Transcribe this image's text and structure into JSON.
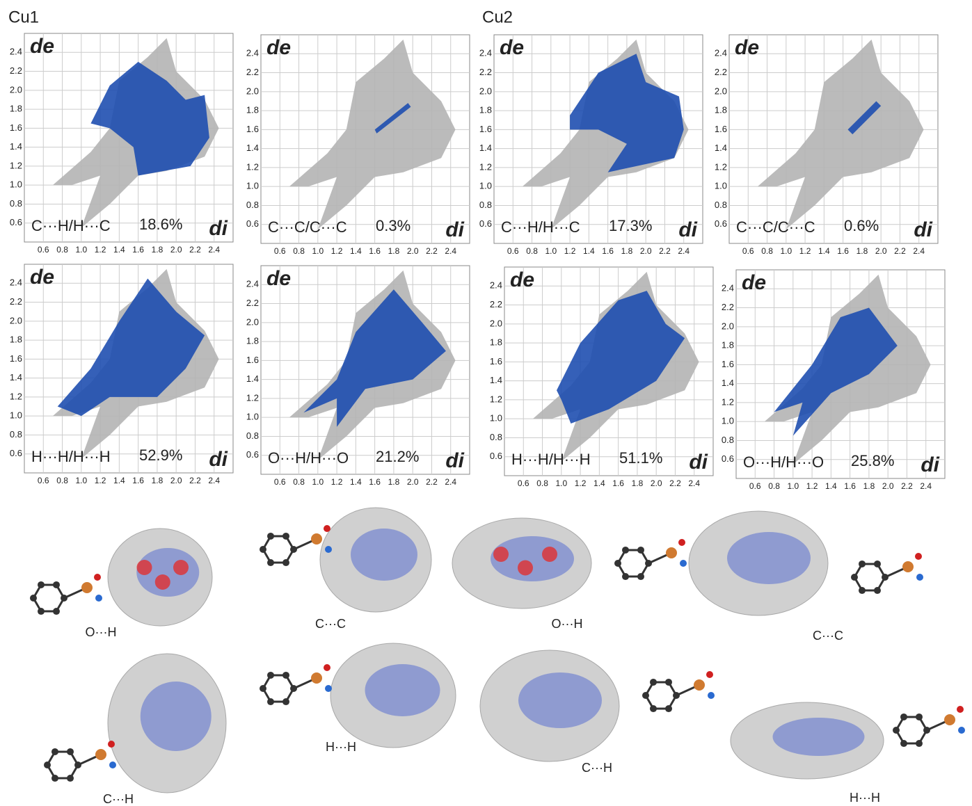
{
  "labels": [
    "Cu1",
    "Cu2"
  ],
  "axes": {
    "de": "de",
    "di": "di",
    "ticks": [
      "0.6",
      "0.8",
      "1.0",
      "1.2",
      "1.4",
      "1.6",
      "1.8",
      "2.0",
      "2.2",
      "2.4"
    ]
  },
  "fingerprints": [
    {
      "contact": "C···H/H···C",
      "percent": "18.6%"
    },
    {
      "contact": "C···C/C···C",
      "percent": "0.3%"
    },
    {
      "contact": "C···H/H···C",
      "percent": "17.3%"
    },
    {
      "contact": "C···C/C···C",
      "percent": "0.6%"
    },
    {
      "contact": "H···H/H···H",
      "percent": "52.9%"
    },
    {
      "contact": "O···H/H···O",
      "percent": "21.2%"
    },
    {
      "contact": "H···H/H···H",
      "percent": "51.1%"
    },
    {
      "contact": "O···H/H···O",
      "percent": "25.8%"
    }
  ],
  "surfaces": [
    {
      "label": "O···H"
    },
    {
      "label": "C···C"
    },
    {
      "label": "O···H"
    },
    {
      "label": "C···C"
    },
    {
      "label": "C···H"
    },
    {
      "label": "H···H"
    },
    {
      "label": "C···H"
    },
    {
      "label": "H···H"
    }
  ]
}
